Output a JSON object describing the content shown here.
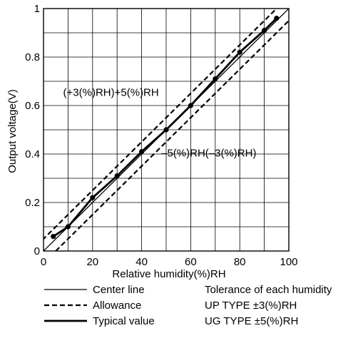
{
  "chart_data": {
    "type": "line",
    "title": "",
    "xlabel": "Relative humidity(%)RH",
    "ylabel": "Output voltage(V)",
    "xlim": [
      0,
      100
    ],
    "ylim": [
      0,
      1
    ],
    "grid": true,
    "x_ticks": [
      "0",
      "20",
      "40",
      "60",
      "80",
      "100"
    ],
    "x_tick_values": [
      0,
      20,
      40,
      60,
      80,
      100
    ],
    "y_ticks": [
      "0",
      "0.2",
      "0.4",
      "0.6",
      "0.8",
      "1"
    ],
    "y_tick_values": [
      0,
      0.2,
      0.4,
      0.6,
      0.8,
      1
    ],
    "series": [
      {
        "name": "Center line",
        "style": "thin-solid",
        "x": [
          0,
          100
        ],
        "y": [
          0,
          1
        ]
      },
      {
        "name": "Allowance",
        "style": "dashed",
        "x": [
          -5,
          95
        ],
        "y": [
          0,
          1
        ]
      },
      {
        "name": "Allowance",
        "style": "dashed",
        "x": [
          5,
          105
        ],
        "y": [
          0,
          1
        ]
      },
      {
        "name": "Typical value",
        "style": "thick-solid",
        "markers": true,
        "x": [
          4,
          10,
          20,
          30,
          40,
          50,
          60,
          70,
          80,
          90,
          95
        ],
        "y": [
          0.06,
          0.1,
          0.22,
          0.31,
          0.41,
          0.5,
          0.6,
          0.71,
          0.82,
          0.91,
          0.96
        ]
      }
    ],
    "annotations": [
      {
        "text": "(+3(%)RH)+5(%)RH",
        "x": 8,
        "y": 0.64
      },
      {
        "text": "–5(%)RH(–3(%)RH)",
        "x": 48,
        "y": 0.39
      }
    ],
    "legend": {
      "placement": "bottom",
      "items": [
        {
          "label": "Center line",
          "style": "thin-solid"
        },
        {
          "label": "Allowance",
          "style": "dashed"
        },
        {
          "label": "Typical value",
          "style": "thick-solid"
        }
      ],
      "notes": [
        "Tolerance of each humidity",
        "UP TYPE ±3(%)RH",
        "UG TYPE ±5(%)RH"
      ]
    }
  }
}
